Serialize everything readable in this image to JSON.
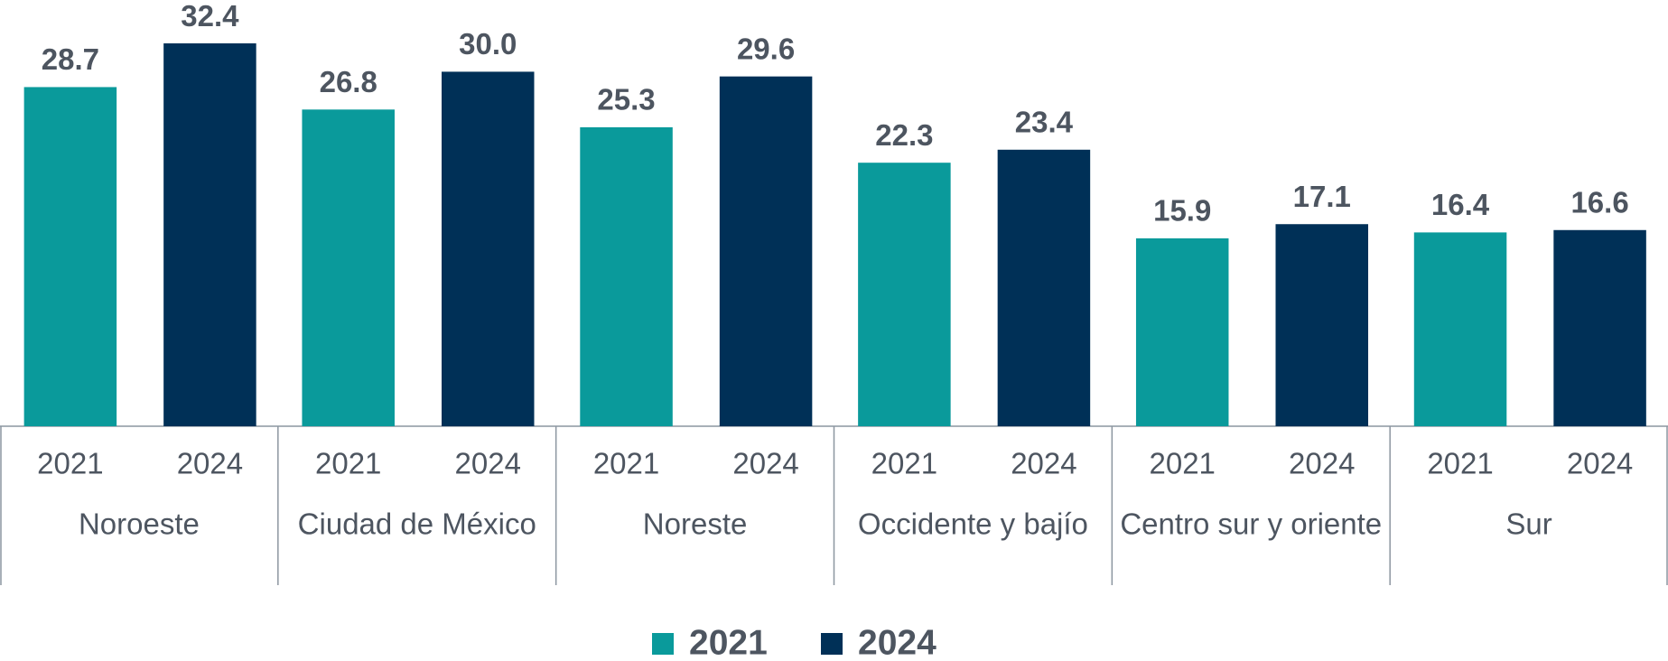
{
  "chart_data": {
    "type": "bar",
    "categories": [
      "Noroeste",
      "Ciudad de México",
      "Noreste",
      "Occidente y bajío",
      "Centro sur y oriente",
      "Sur"
    ],
    "series": [
      {
        "name": "2021",
        "color": "#0a9a9b",
        "values": [
          28.7,
          26.8,
          25.3,
          22.3,
          15.9,
          16.4
        ]
      },
      {
        "name": "2024",
        "color": "#003057",
        "values": [
          32.4,
          30.0,
          29.6,
          23.4,
          17.1,
          16.6
        ],
        "value_labels": [
          "32.4",
          "30.0",
          "29.6",
          "23.4",
          "17.1",
          "16.6"
        ]
      }
    ],
    "ylim": [
      0,
      35
    ]
  }
}
